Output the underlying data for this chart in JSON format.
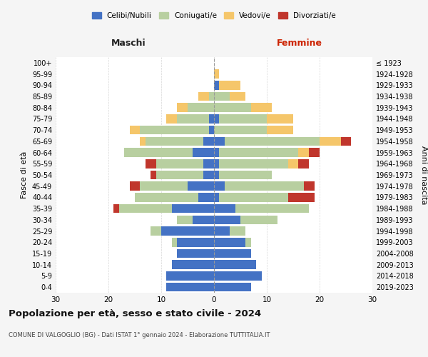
{
  "age_groups": [
    "0-4",
    "5-9",
    "10-14",
    "15-19",
    "20-24",
    "25-29",
    "30-34",
    "35-39",
    "40-44",
    "45-49",
    "50-54",
    "55-59",
    "60-64",
    "65-69",
    "70-74",
    "75-79",
    "80-84",
    "85-89",
    "90-94",
    "95-99",
    "100+"
  ],
  "birth_years": [
    "2019-2023",
    "2014-2018",
    "2009-2013",
    "2004-2008",
    "1999-2003",
    "1994-1998",
    "1989-1993",
    "1984-1988",
    "1979-1983",
    "1974-1978",
    "1969-1973",
    "1964-1968",
    "1959-1963",
    "1954-1958",
    "1949-1953",
    "1944-1948",
    "1939-1943",
    "1934-1938",
    "1929-1933",
    "1924-1928",
    "≤ 1923"
  ],
  "colors": {
    "celibi": "#4472c4",
    "coniugati": "#b8cfa0",
    "vedovi": "#f5c66a",
    "divorziati": "#c0362c"
  },
  "males": {
    "celibi": [
      9,
      9,
      8,
      7,
      7,
      10,
      4,
      8,
      3,
      5,
      2,
      2,
      4,
      2,
      1,
      1,
      0,
      0,
      0,
      0,
      0
    ],
    "coniugati": [
      0,
      0,
      0,
      0,
      1,
      2,
      3,
      10,
      12,
      9,
      9,
      9,
      13,
      11,
      13,
      6,
      5,
      1,
      0,
      0,
      0
    ],
    "vedovi": [
      0,
      0,
      0,
      0,
      0,
      0,
      0,
      0,
      0,
      0,
      0,
      0,
      0,
      1,
      2,
      2,
      2,
      2,
      0,
      0,
      0
    ],
    "divorziati": [
      0,
      0,
      0,
      0,
      0,
      0,
      0,
      1,
      0,
      2,
      1,
      2,
      0,
      0,
      0,
      0,
      0,
      0,
      0,
      0,
      0
    ]
  },
  "females": {
    "celibi": [
      7,
      9,
      8,
      7,
      6,
      3,
      5,
      4,
      1,
      2,
      1,
      1,
      1,
      2,
      0,
      1,
      0,
      0,
      1,
      0,
      0
    ],
    "coniugati": [
      0,
      0,
      0,
      0,
      1,
      3,
      7,
      14,
      13,
      15,
      10,
      13,
      15,
      18,
      10,
      9,
      7,
      3,
      0,
      0,
      0
    ],
    "vedovi": [
      0,
      0,
      0,
      0,
      0,
      0,
      0,
      0,
      0,
      0,
      0,
      2,
      2,
      4,
      5,
      5,
      4,
      3,
      4,
      1,
      0
    ],
    "divorziati": [
      0,
      0,
      0,
      0,
      0,
      0,
      0,
      0,
      5,
      2,
      0,
      2,
      2,
      2,
      0,
      0,
      0,
      0,
      0,
      0,
      0
    ]
  },
  "xlim": 30,
  "title": "Popolazione per età, sesso e stato civile - 2024",
  "subtitle": "COMUNE DI VALGOGLIO (BG) - Dati ISTAT 1° gennaio 2024 - Elaborazione TUTTITALIA.IT",
  "xlabel_left": "Maschi",
  "xlabel_right": "Femmine",
  "ylabel_left": "Fasce di età",
  "ylabel_right": "Anni di nascita",
  "legend_labels": [
    "Celibi/Nubili",
    "Coniugati/e",
    "Vedovi/e",
    "Divorziati/e"
  ],
  "bg_color": "#f5f5f5",
  "plot_bg": "#ffffff",
  "grid_color": "#cccccc"
}
